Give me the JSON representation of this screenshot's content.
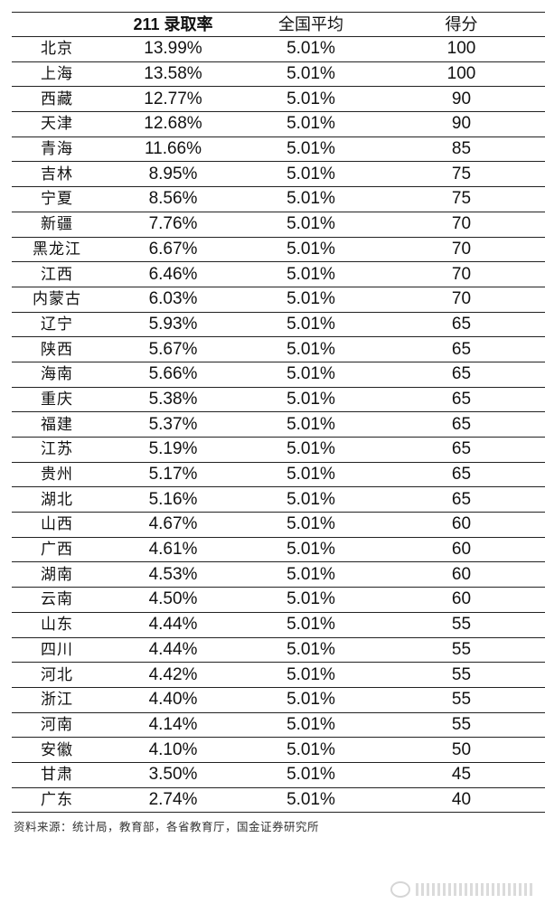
{
  "headers": [
    "",
    "211 录取率",
    "全国平均",
    "得分"
  ],
  "rows": [
    [
      "北京",
      "13.99%",
      "5.01%",
      "100"
    ],
    [
      "上海",
      "13.58%",
      "5.01%",
      "100"
    ],
    [
      "西藏",
      "12.77%",
      "5.01%",
      "90"
    ],
    [
      "天津",
      "12.68%",
      "5.01%",
      "90"
    ],
    [
      "青海",
      "11.66%",
      "5.01%",
      "85"
    ],
    [
      "吉林",
      "8.95%",
      "5.01%",
      "75"
    ],
    [
      "宁夏",
      "8.56%",
      "5.01%",
      "75"
    ],
    [
      "新疆",
      "7.76%",
      "5.01%",
      "70"
    ],
    [
      "黑龙江",
      "6.67%",
      "5.01%",
      "70"
    ],
    [
      "江西",
      "6.46%",
      "5.01%",
      "70"
    ],
    [
      "内蒙古",
      "6.03%",
      "5.01%",
      "70"
    ],
    [
      "辽宁",
      "5.93%",
      "5.01%",
      "65"
    ],
    [
      "陕西",
      "5.67%",
      "5.01%",
      "65"
    ],
    [
      "海南",
      "5.66%",
      "5.01%",
      "65"
    ],
    [
      "重庆",
      "5.38%",
      "5.01%",
      "65"
    ],
    [
      "福建",
      "5.37%",
      "5.01%",
      "65"
    ],
    [
      "江苏",
      "5.19%",
      "5.01%",
      "65"
    ],
    [
      "贵州",
      "5.17%",
      "5.01%",
      "65"
    ],
    [
      "湖北",
      "5.16%",
      "5.01%",
      "65"
    ],
    [
      "山西",
      "4.67%",
      "5.01%",
      "60"
    ],
    [
      "广西",
      "4.61%",
      "5.01%",
      "60"
    ],
    [
      "湖南",
      "4.53%",
      "5.01%",
      "60"
    ],
    [
      "云南",
      "4.50%",
      "5.01%",
      "60"
    ],
    [
      "山东",
      "4.44%",
      "5.01%",
      "55"
    ],
    [
      "四川",
      "4.44%",
      "5.01%",
      "55"
    ],
    [
      "河北",
      "4.42%",
      "5.01%",
      "55"
    ],
    [
      "浙江",
      "4.40%",
      "5.01%",
      "55"
    ],
    [
      "河南",
      "4.14%",
      "5.01%",
      "55"
    ],
    [
      "安徽",
      "4.10%",
      "5.01%",
      "50"
    ],
    [
      "甘肃",
      "3.50%",
      "5.01%",
      "45"
    ],
    [
      "广东",
      "2.74%",
      "5.01%",
      "40"
    ]
  ],
  "source": "资料来源：统计局，教育部，各省教育厅，国金证券研究所"
}
